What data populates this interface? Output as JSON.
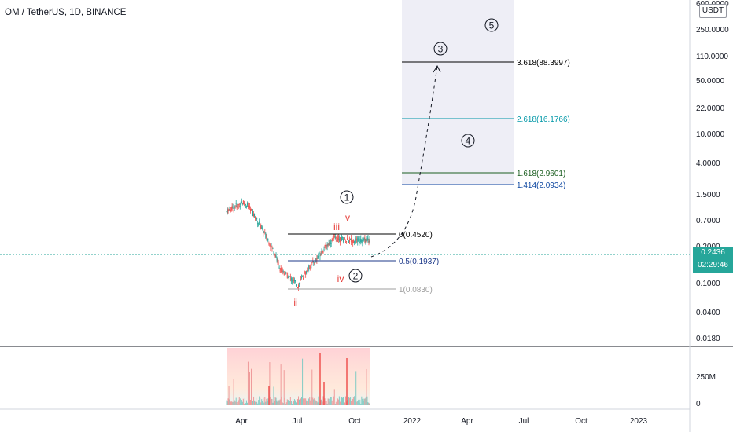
{
  "header": {
    "symbol_title": "OM / TetherUS, 1D, BINANCE"
  },
  "price_axis": {
    "unit": "USDT",
    "top_partial_label": "600.0000",
    "tick_labels": [
      "250.0000",
      "110.0000",
      "50.0000",
      "22.0000",
      "10.0000",
      "4.0000",
      "1.5000",
      "0.7000",
      "0.2000",
      "0.1000",
      "0.0400",
      "0.0180"
    ],
    "current_price": "0.2436",
    "countdown": "02:29:46"
  },
  "volume_axis": {
    "tick_labels": [
      "250M",
      "0"
    ]
  },
  "time_axis": {
    "labels": [
      "Apr",
      "Jul",
      "Oct",
      "2022",
      "Apr",
      "Jul",
      "Oct",
      "2023"
    ]
  },
  "fib_levels": {
    "retracement": [
      {
        "label": "0(0.4520)",
        "value": 0.452,
        "color": "#000000"
      },
      {
        "label": "0.5(0.1937)",
        "value": 0.1937,
        "color": "#1e3a8a"
      },
      {
        "label": "1(0.0830)",
        "value": 0.083,
        "color": "#9e9e9e"
      }
    ],
    "extension": [
      {
        "label": "3.618(88.3997)",
        "value": 88.3997,
        "color": "#000000"
      },
      {
        "label": "2.618(16.1766)",
        "value": 16.1766,
        "color": "#0097a7"
      },
      {
        "label": "1.618(2.9601)",
        "value": 2.9601,
        "color": "#1b5e20"
      },
      {
        "label": "1.414(2.0934)",
        "value": 2.0934,
        "color": "#0d47a1"
      }
    ]
  },
  "wave_labels": {
    "circled": [
      "1",
      "2",
      "3",
      "4",
      "5"
    ],
    "minor": [
      "iii",
      "v",
      "iv",
      "ii"
    ]
  },
  "colors": {
    "up": "#26a69a",
    "down": "#ef5350",
    "minor_wave": "#e53935",
    "projection_box": "#eeeef6",
    "price_line": "#26a69a"
  },
  "chart_data": {
    "type": "candlestick",
    "x_axis_labels": [
      "Apr",
      "Jul",
      "Oct",
      "2022",
      "Apr",
      "Jul",
      "Oct",
      "2023"
    ],
    "y_scale": "log",
    "ylim": [
      0.018,
      600
    ],
    "approx_series": {
      "name": "",
      "points": [
        {
          "x": "Mar 2021",
          "y": 0.45
        },
        {
          "x": "Apr 2021",
          "y": 0.55
        },
        {
          "x": "May 2021",
          "y": 0.3
        },
        {
          "x": "Jun 2021",
          "y": 0.13
        },
        {
          "x": "Jul 2021",
          "y": 0.09
        },
        {
          "x": "Aug 2021",
          "y": 0.16
        },
        {
          "x": "Sep 2021",
          "y": 0.25
        },
        {
          "x": "Oct 2021",
          "y": 0.24
        },
        {
          "x": "Nov 2021",
          "y": 0.2436
        }
      ]
    },
    "current_price": 0.2436,
    "projection": "wave 3 toward 88.3997"
  }
}
